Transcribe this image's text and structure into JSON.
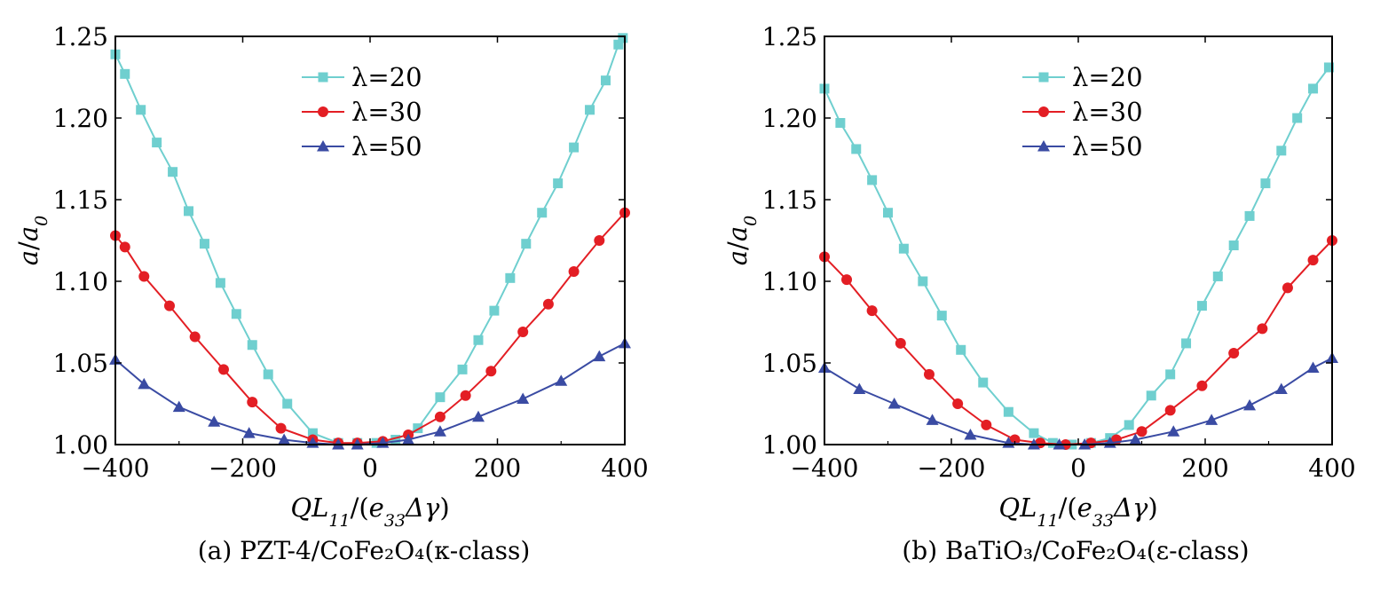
{
  "chart_data": [
    {
      "type": "line",
      "caption": "(a) PZT-4/CoFe₂O₄(κ-class)",
      "xlabel": "QL₁₁/(e₃₃Δγ)",
      "ylabel": "a/a₀",
      "xlim": [
        -400,
        400
      ],
      "ylim": [
        1.0,
        1.25
      ],
      "xticks": [
        -400,
        -200,
        0,
        200,
        400
      ],
      "xtick_labels": [
        "−400",
        "−200",
        "0",
        "200",
        "400"
      ],
      "yticks": [
        1.0,
        1.05,
        1.1,
        1.15,
        1.2,
        1.25
      ],
      "ytick_labels": [
        "1.00",
        "1.05",
        "1.10",
        "1.15",
        "1.20",
        "1.25"
      ],
      "legend_position": "top-center",
      "series": [
        {
          "name": "λ=20",
          "color": "#6fcfcf",
          "marker": "square",
          "points": [
            [
              -400,
              1.239
            ],
            [
              -385,
              1.227
            ],
            [
              -360,
              1.205
            ],
            [
              -335,
              1.185
            ],
            [
              -310,
              1.167
            ],
            [
              -285,
              1.143
            ],
            [
              -260,
              1.123
            ],
            [
              -235,
              1.099
            ],
            [
              -210,
              1.08
            ],
            [
              -185,
              1.061
            ],
            [
              -160,
              1.043
            ],
            [
              -130,
              1.025
            ],
            [
              -90,
              1.007
            ],
            [
              -50,
              1.001
            ],
            [
              -20,
              1.001
            ],
            [
              10,
              1.001
            ],
            [
              40,
              1.003
            ],
            [
              75,
              1.01
            ],
            [
              110,
              1.029
            ],
            [
              145,
              1.046
            ],
            [
              170,
              1.064
            ],
            [
              195,
              1.082
            ],
            [
              220,
              1.102
            ],
            [
              245,
              1.123
            ],
            [
              270,
              1.142
            ],
            [
              295,
              1.16
            ],
            [
              320,
              1.182
            ],
            [
              345,
              1.205
            ],
            [
              370,
              1.223
            ],
            [
              390,
              1.245
            ],
            [
              397,
              1.249
            ]
          ]
        },
        {
          "name": "λ=30",
          "color": "#e31e24",
          "marker": "circle",
          "points": [
            [
              -400,
              1.128
            ],
            [
              -385,
              1.121
            ],
            [
              -355,
              1.103
            ],
            [
              -315,
              1.085
            ],
            [
              -275,
              1.066
            ],
            [
              -230,
              1.046
            ],
            [
              -185,
              1.026
            ],
            [
              -140,
              1.01
            ],
            [
              -90,
              1.003
            ],
            [
              -50,
              1.001
            ],
            [
              -20,
              1.001
            ],
            [
              20,
              1.002
            ],
            [
              60,
              1.006
            ],
            [
              110,
              1.017
            ],
            [
              150,
              1.03
            ],
            [
              190,
              1.045
            ],
            [
              240,
              1.069
            ],
            [
              280,
              1.086
            ],
            [
              320,
              1.106
            ],
            [
              360,
              1.125
            ],
            [
              400,
              1.142
            ]
          ]
        },
        {
          "name": "λ=50",
          "color": "#3a4ba3",
          "marker": "triangle",
          "points": [
            [
              -400,
              1.052
            ],
            [
              -355,
              1.037
            ],
            [
              -300,
              1.023
            ],
            [
              -245,
              1.014
            ],
            [
              -190,
              1.007
            ],
            [
              -135,
              1.003
            ],
            [
              -90,
              1.001
            ],
            [
              -50,
              1.0
            ],
            [
              -20,
              1.0
            ],
            [
              20,
              1.001
            ],
            [
              60,
              1.003
            ],
            [
              110,
              1.008
            ],
            [
              170,
              1.017
            ],
            [
              240,
              1.028
            ],
            [
              300,
              1.039
            ],
            [
              360,
              1.054
            ],
            [
              400,
              1.062
            ]
          ]
        }
      ]
    },
    {
      "type": "line",
      "caption": "(b) BaTiO₃/CoFe₂O₄(ε-class)",
      "xlabel": "QL₁₁/(e₃₃Δγ)",
      "ylabel": "a/a₀",
      "xlim": [
        -400,
        400
      ],
      "ylim": [
        1.0,
        1.25
      ],
      "xticks": [
        -400,
        -200,
        0,
        200,
        400
      ],
      "xtick_labels": [
        "−400",
        "−200",
        "0",
        "200",
        "400"
      ],
      "yticks": [
        1.0,
        1.05,
        1.1,
        1.15,
        1.2,
        1.25
      ],
      "ytick_labels": [
        "1.00",
        "1.05",
        "1.10",
        "1.15",
        "1.20",
        "1.25"
      ],
      "legend_position": "top-center",
      "series": [
        {
          "name": "λ=20",
          "color": "#6fcfcf",
          "marker": "square",
          "points": [
            [
              -400,
              1.218
            ],
            [
              -375,
              1.197
            ],
            [
              -350,
              1.181
            ],
            [
              -325,
              1.162
            ],
            [
              -300,
              1.142
            ],
            [
              -275,
              1.12
            ],
            [
              -245,
              1.1
            ],
            [
              -215,
              1.079
            ],
            [
              -185,
              1.058
            ],
            [
              -150,
              1.038
            ],
            [
              -110,
              1.02
            ],
            [
              -70,
              1.007
            ],
            [
              -40,
              1.001
            ],
            [
              -10,
              1.0
            ],
            [
              20,
              1.001
            ],
            [
              50,
              1.004
            ],
            [
              80,
              1.012
            ],
            [
              115,
              1.03
            ],
            [
              145,
              1.043
            ],
            [
              170,
              1.062
            ],
            [
              195,
              1.085
            ],
            [
              220,
              1.103
            ],
            [
              245,
              1.122
            ],
            [
              270,
              1.14
            ],
            [
              295,
              1.16
            ],
            [
              320,
              1.18
            ],
            [
              345,
              1.2
            ],
            [
              370,
              1.218
            ],
            [
              395,
              1.231
            ]
          ]
        },
        {
          "name": "λ=30",
          "color": "#e31e24",
          "marker": "circle",
          "points": [
            [
              -400,
              1.115
            ],
            [
              -365,
              1.101
            ],
            [
              -325,
              1.082
            ],
            [
              -280,
              1.062
            ],
            [
              -235,
              1.043
            ],
            [
              -190,
              1.025
            ],
            [
              -145,
              1.012
            ],
            [
              -100,
              1.003
            ],
            [
              -60,
              1.001
            ],
            [
              -20,
              1.0
            ],
            [
              20,
              1.001
            ],
            [
              60,
              1.003
            ],
            [
              100,
              1.008
            ],
            [
              145,
              1.021
            ],
            [
              195,
              1.036
            ],
            [
              245,
              1.056
            ],
            [
              290,
              1.071
            ],
            [
              330,
              1.096
            ],
            [
              370,
              1.113
            ],
            [
              400,
              1.125
            ]
          ]
        },
        {
          "name": "λ=50",
          "color": "#3a4ba3",
          "marker": "triangle",
          "points": [
            [
              -400,
              1.047
            ],
            [
              -345,
              1.034
            ],
            [
              -290,
              1.025
            ],
            [
              -230,
              1.015
            ],
            [
              -170,
              1.006
            ],
            [
              -110,
              1.001
            ],
            [
              -70,
              1.0
            ],
            [
              -30,
              1.0
            ],
            [
              10,
              1.0
            ],
            [
              50,
              1.001
            ],
            [
              90,
              1.003
            ],
            [
              150,
              1.008
            ],
            [
              210,
              1.015
            ],
            [
              270,
              1.024
            ],
            [
              320,
              1.034
            ],
            [
              370,
              1.047
            ],
            [
              400,
              1.053
            ]
          ]
        }
      ]
    }
  ]
}
